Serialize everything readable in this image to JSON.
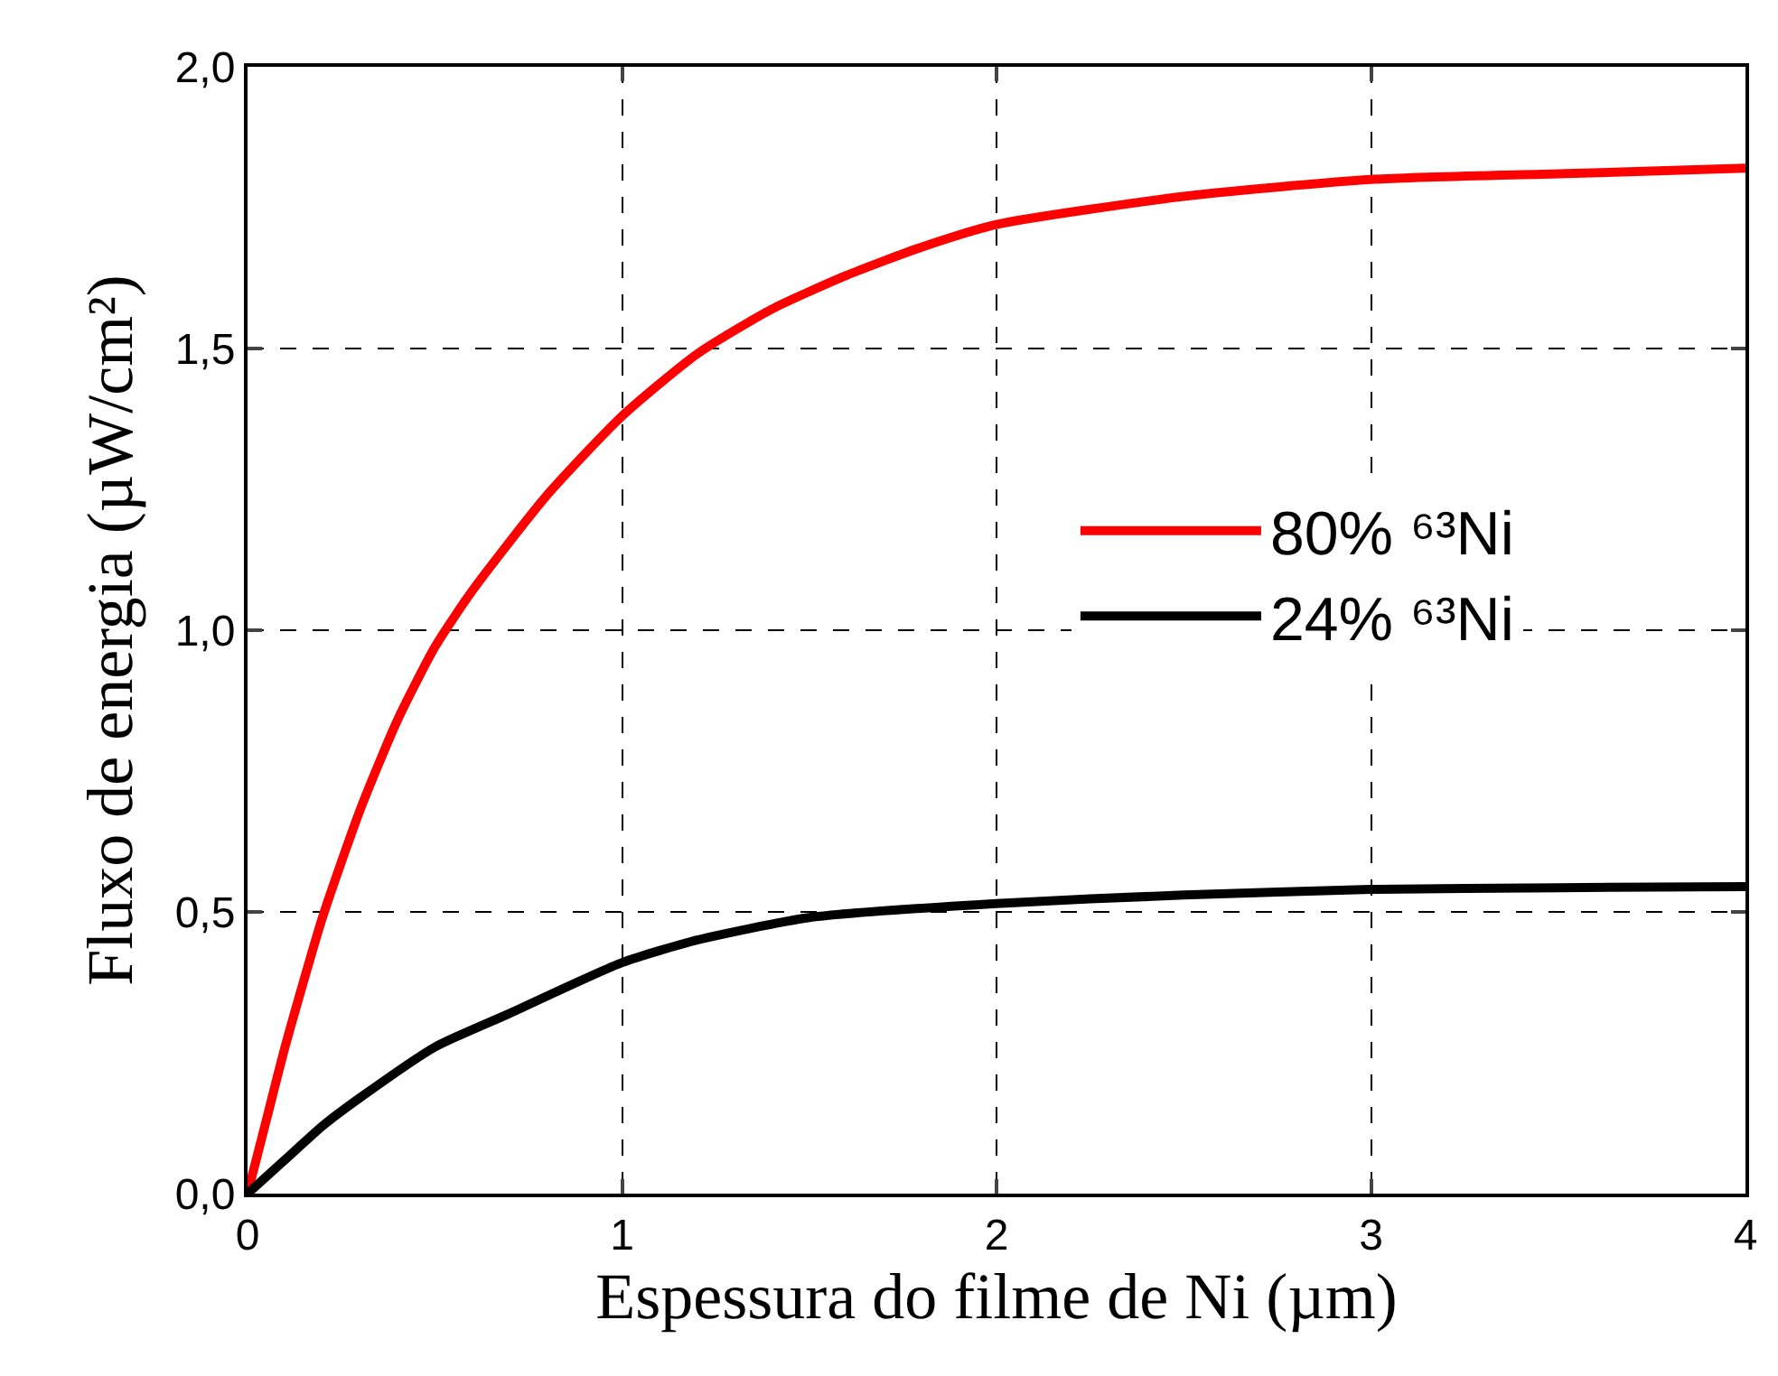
{
  "chart_data": {
    "type": "line",
    "xlabel": "Espessura do filme de Ni (µm)",
    "ylabel": "Fluxo de energia (µW/cm²)",
    "xlim": [
      0,
      4
    ],
    "xticks": [
      0,
      1,
      2,
      3,
      4
    ],
    "ylim": [
      0,
      2
    ],
    "yticks": [
      {
        "value": 0,
        "label": "0,0"
      },
      {
        "value": 0.5,
        "label": "0,5"
      },
      {
        "value": 1,
        "label": "1,0"
      },
      {
        "value": 1.5,
        "label": "1,5"
      },
      {
        "value": 2,
        "label": "2,0"
      }
    ],
    "grid": true,
    "legend": "right",
    "line_style": "solid",
    "marker": "none",
    "series": [
      {
        "name": "80% ⁶³Ni",
        "color": "#ff0000",
        "x": [
          0,
          0.05,
          0.1,
          0.2,
          0.3,
          0.4,
          0.5,
          0.6,
          0.8,
          1,
          1.2,
          1.4,
          1.6,
          1.8,
          2,
          2.5,
          3,
          3.5,
          4
        ],
        "values": [
          0,
          0.13,
          0.26,
          0.49,
          0.68,
          0.84,
          0.97,
          1.07,
          1.24,
          1.38,
          1.49,
          1.57,
          1.63,
          1.68,
          1.72,
          1.77,
          1.8,
          1.81,
          1.82
        ]
      },
      {
        "name": "24% ⁶³Ni",
        "color": "#000000",
        "x": [
          0,
          0.1,
          0.2,
          0.3,
          0.5,
          0.7,
          1,
          1.2,
          1.5,
          2,
          2.5,
          3,
          3.5,
          4
        ],
        "values": [
          0,
          0.06,
          0.12,
          0.17,
          0.26,
          0.32,
          0.41,
          0.45,
          0.49,
          0.515,
          0.53,
          0.54,
          0.543,
          0.545
        ]
      }
    ]
  }
}
